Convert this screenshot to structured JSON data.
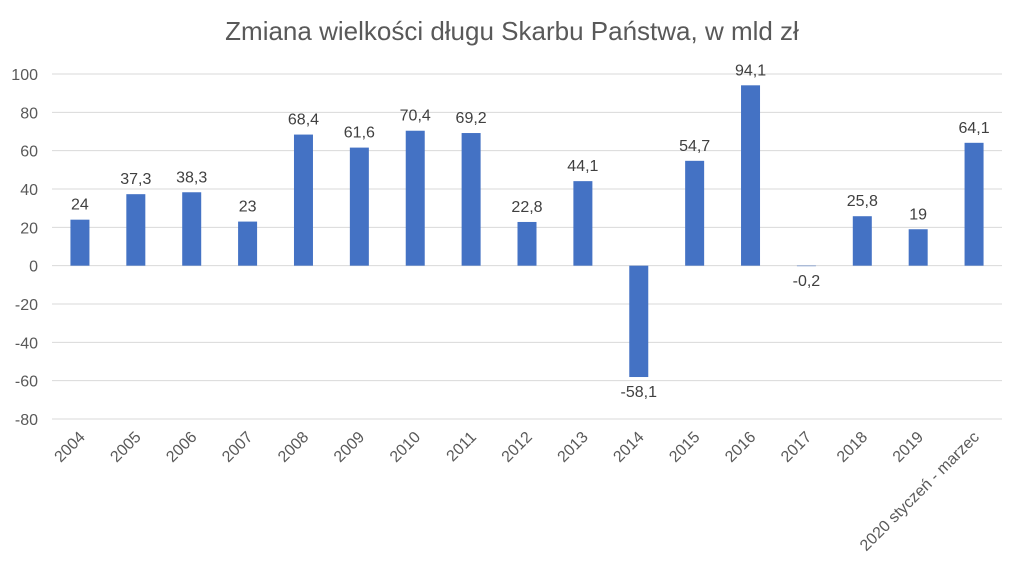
{
  "chart_data": {
    "type": "bar",
    "title": "Zmiana wielkości długu Skarbu Państwa, w mld zł",
    "xlabel": "",
    "ylabel": "",
    "ylim": [
      -80,
      100
    ],
    "yticks": [
      100,
      80,
      60,
      40,
      20,
      0,
      -20,
      -40,
      -60,
      -80
    ],
    "grid": true,
    "legend": "none",
    "bar_color": "#4472C4",
    "categories": [
      "2004",
      "2005",
      "2006",
      "2007",
      "2008",
      "2009",
      "2010",
      "2011",
      "2012",
      "2013",
      "2014",
      "2015",
      "2016",
      "2017",
      "2018",
      "2019",
      "2020 styczeń - marzec"
    ],
    "values": [
      24,
      37.3,
      38.3,
      23,
      68.4,
      61.6,
      70.4,
      69.2,
      22.8,
      44.1,
      -58.1,
      54.7,
      94.1,
      -0.2,
      25.8,
      19,
      64.1
    ],
    "value_labels": [
      "24",
      "37,3",
      "38,3",
      "23",
      "68,4",
      "61,6",
      "70,4",
      "69,2",
      "22,8",
      "44,1",
      "-58,1",
      "54,7",
      "94,1",
      "-0,2",
      "25,8",
      "19",
      "64,1"
    ]
  }
}
